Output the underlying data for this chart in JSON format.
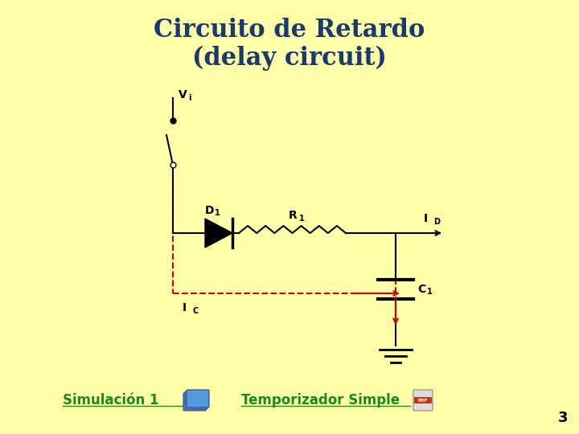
{
  "title_line1": "Circuito de Retardo",
  "title_line2": "(delay circuit)",
  "title_color": "#1a3a6b",
  "title_fontsize": 22,
  "bg_color": "#ffffaa",
  "circuit_color": "#000000",
  "dashed_color": "#cc0000",
  "link_color": "#1a8a1a",
  "bottom_left_text": "Simulación 1",
  "bottom_right_text": "Temporizador Simple",
  "page_number": "3",
  "label_Vi": "V",
  "label_Vi_sub": "i",
  "label_D1": "D",
  "label_D1_sub": "1",
  "label_R1": "R",
  "label_R1_sub": "1",
  "label_ID": "I",
  "label_ID_sub": "D",
  "label_IC": "I",
  "label_IC_sub": "C",
  "label_C1": "C",
  "label_C1_sub": "1"
}
